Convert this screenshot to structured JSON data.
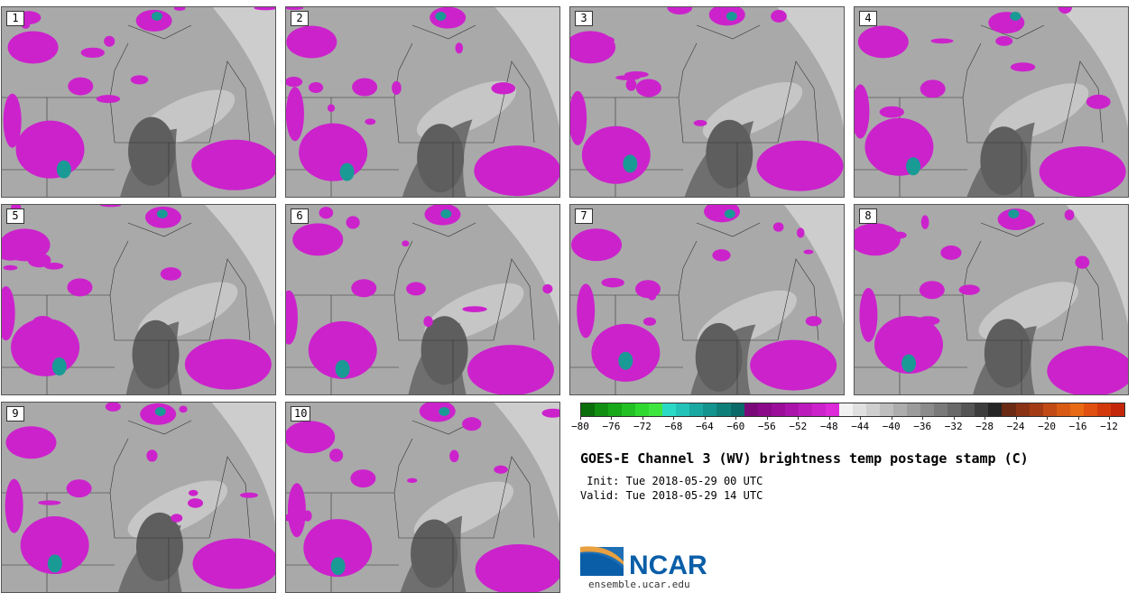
{
  "panels": [
    "1",
    "2",
    "3",
    "4",
    "5",
    "6",
    "7",
    "8",
    "9",
    "10"
  ],
  "colorbar": {
    "colors": [
      "#0a6e0a",
      "#118f11",
      "#18a818",
      "#22c022",
      "#2fd82f",
      "#3fe63f",
      "#2bd9c7",
      "#22c2b8",
      "#1aa8a2",
      "#14948f",
      "#0f7f7a",
      "#0b6a68",
      "#7a0a7a",
      "#8a0a8a",
      "#9a0e9a",
      "#aa14aa",
      "#bc1cbc",
      "#cc22cc",
      "#dc2ad8",
      "#f2f2f2",
      "#e0e0e0",
      "#cfcfcf",
      "#bebebe",
      "#adadad",
      "#9c9c9c",
      "#8b8b8b",
      "#7a7a7a",
      "#696969",
      "#555555",
      "#3d3d3d",
      "#252525",
      "#6a2a14",
      "#8a3214",
      "#a33c14",
      "#c24a14",
      "#d85a14",
      "#e86a14",
      "#e05010",
      "#d23a0c",
      "#c4260a"
    ],
    "tick_labels": [
      "−80",
      "−76",
      "−72",
      "−68",
      "−64",
      "−60",
      "−56",
      "−52",
      "−48",
      "−44",
      "−40",
      "−36",
      "−32",
      "−28",
      "−24",
      "−20",
      "−16",
      "−12"
    ]
  },
  "title": "GOES-E Channel 3 (WV) brightness temp postage stamp (C)",
  "init_line": " Init: Tue 2018-05-29 00 UTC",
  "valid_line": "Valid: Tue 2018-05-29 14 UTC",
  "logo_text": "NCAR",
  "logo_url": "ensemble.ucar.edu",
  "colors": {
    "moist": "#cc22cc",
    "moist_core": "#1a9a95",
    "dry": "#6f6f6f",
    "mid": "#a9a9a9",
    "light": "#d6d6d6"
  }
}
